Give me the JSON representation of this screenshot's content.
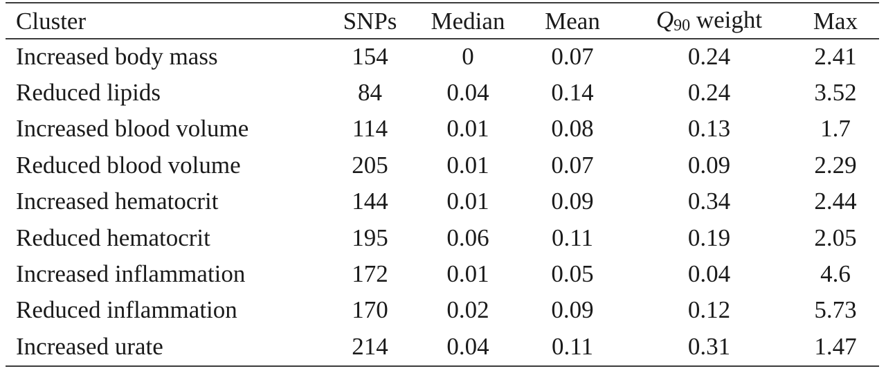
{
  "table": {
    "headers": {
      "cluster": "Cluster",
      "snps": "SNPs",
      "median": "Median",
      "mean": "Mean",
      "q90_symbol": "Q",
      "q90_subscript": "90",
      "q90_label": "weight",
      "max": "Max"
    },
    "rows": [
      {
        "cluster": "Increased body mass",
        "snps": "154",
        "median": "0",
        "mean": "0.07",
        "q90": "0.24",
        "max": "2.41"
      },
      {
        "cluster": "Reduced lipids",
        "snps": "84",
        "median": "0.04",
        "mean": "0.14",
        "q90": "0.24",
        "max": "3.52"
      },
      {
        "cluster": "Increased blood volume",
        "snps": "114",
        "median": "0.01",
        "mean": "0.08",
        "q90": "0.13",
        "max": "1.7"
      },
      {
        "cluster": "Reduced blood volume",
        "snps": "205",
        "median": "0.01",
        "mean": "0.07",
        "q90": "0.09",
        "max": "2.29"
      },
      {
        "cluster": "Increased hematocrit",
        "snps": "144",
        "median": "0.01",
        "mean": "0.09",
        "q90": "0.34",
        "max": "2.44"
      },
      {
        "cluster": "Reduced hematocrit",
        "snps": "195",
        "median": "0.06",
        "mean": "0.11",
        "q90": "0.19",
        "max": "2.05"
      },
      {
        "cluster": "Increased inflammation",
        "snps": "172",
        "median": "0.01",
        "mean": "0.05",
        "q90": "0.04",
        "max": "4.6"
      },
      {
        "cluster": "Reduced inflammation",
        "snps": "170",
        "median": "0.02",
        "mean": "0.09",
        "q90": "0.12",
        "max": "5.73"
      },
      {
        "cluster": "Increased urate",
        "snps": "214",
        "median": "0.04",
        "mean": "0.11",
        "q90": "0.31",
        "max": "1.47"
      }
    ]
  }
}
